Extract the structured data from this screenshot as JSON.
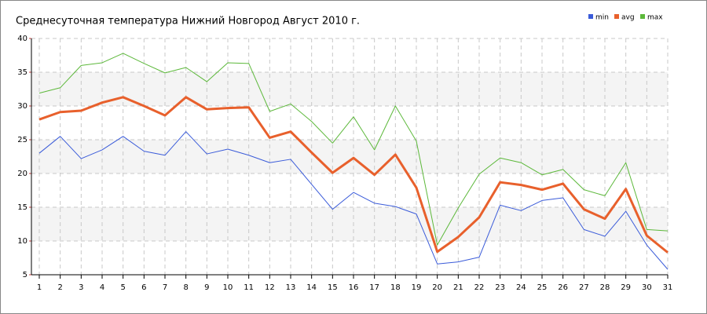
{
  "chart_data": {
    "type": "line",
    "title": "Среднесуточная температура Нижний Новгород  Август 2010 г.",
    "x": [
      1,
      2,
      3,
      4,
      5,
      6,
      7,
      8,
      9,
      10,
      11,
      12,
      13,
      14,
      15,
      16,
      17,
      18,
      19,
      20,
      21,
      22,
      23,
      24,
      25,
      26,
      27,
      28,
      29,
      30,
      31
    ],
    "xlim": [
      1,
      31
    ],
    "xticks": [
      1,
      2,
      3,
      4,
      5,
      6,
      7,
      8,
      9,
      10,
      11,
      12,
      13,
      14,
      15,
      16,
      17,
      18,
      19,
      20,
      21,
      22,
      23,
      24,
      25,
      26,
      27,
      28,
      29,
      30,
      31
    ],
    "ylim": [
      5,
      40
    ],
    "yticks": [
      5,
      10,
      15,
      20,
      25,
      30,
      35,
      40
    ],
    "grid": true,
    "alternate_bands": true,
    "legend": "top-right",
    "series": [
      {
        "name": "min",
        "color": "#3a5bd9",
        "values": [
          23.0,
          25.5,
          22.2,
          23.5,
          25.5,
          23.3,
          22.7,
          26.2,
          22.9,
          23.6,
          22.7,
          21.6,
          22.1,
          18.4,
          14.7,
          17.2,
          15.6,
          15.1,
          14.0,
          6.6,
          6.9,
          7.6,
          15.3,
          14.5,
          16.0,
          16.4,
          11.7,
          10.7,
          14.4,
          9.4,
          5.8
        ]
      },
      {
        "name": "avg",
        "color": "#e8602c",
        "values": [
          28.0,
          29.1,
          29.3,
          30.5,
          31.3,
          30.0,
          28.6,
          31.3,
          29.5,
          29.7,
          29.8,
          25.3,
          26.2,
          23.1,
          20.1,
          22.3,
          19.8,
          22.8,
          17.9,
          8.4,
          10.6,
          13.5,
          18.7,
          18.3,
          17.6,
          18.5,
          14.7,
          13.3,
          17.7,
          10.8,
          8.3
        ]
      },
      {
        "name": "max",
        "color": "#5cb83a",
        "values": [
          31.9,
          32.7,
          36.0,
          36.4,
          37.8,
          36.3,
          34.9,
          35.7,
          33.6,
          36.4,
          36.3,
          29.2,
          30.3,
          27.7,
          24.5,
          28.4,
          23.5,
          30.0,
          24.8,
          9.4,
          14.9,
          19.9,
          22.3,
          21.6,
          19.8,
          20.6,
          17.6,
          16.7,
          21.6,
          11.7,
          11.5
        ]
      }
    ]
  }
}
